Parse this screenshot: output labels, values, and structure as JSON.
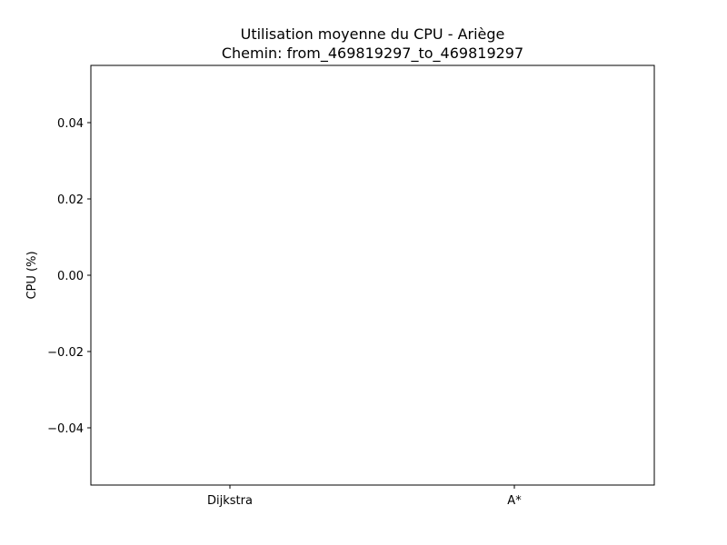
{
  "chart_data": {
    "type": "bar",
    "title": "Utilisation moyenne du CPU - Ariège",
    "subtitle": "Chemin: from_469819297_to_469819297",
    "xlabel": "",
    "ylabel": "CPU (%)",
    "categories": [
      "Dijkstra",
      "A*"
    ],
    "values": [
      0,
      0
    ],
    "ylim": [
      -0.055,
      0.055
    ],
    "yticks": [
      -0.04,
      -0.02,
      0.0,
      0.02,
      0.04
    ],
    "ytick_labels": [
      "−0.04",
      "−0.02",
      "0.00",
      "0.02",
      "0.04"
    ],
    "grid": false,
    "bar_color": "#1f77b4"
  }
}
